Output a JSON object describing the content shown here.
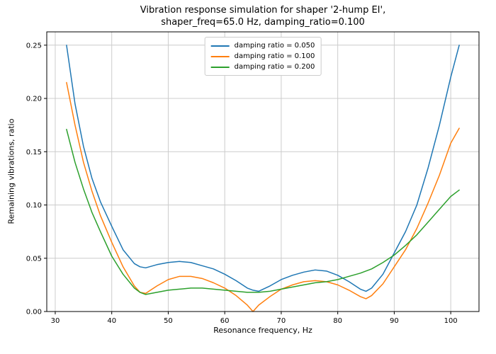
{
  "chart_data": {
    "type": "line",
    "title_line1": "Vibration response simulation for shaper '2-hump EI',",
    "title_line2": "shaper_freq=65.0 Hz, damping_ratio=0.100",
    "xlabel": "Resonance frequency, Hz",
    "ylabel": "Remaining vibrations, ratio",
    "xlim": [
      28.5,
      105
    ],
    "ylim": [
      0,
      0.2625
    ],
    "xticks": [
      30,
      40,
      50,
      60,
      70,
      80,
      90,
      100
    ],
    "yticks": [
      0,
      0.05,
      0.1,
      0.15,
      0.2,
      0.25
    ],
    "grid": true,
    "legend_position": "upper center",
    "x": [
      32,
      33.5,
      35,
      36.5,
      38,
      40,
      42,
      44,
      45,
      46,
      48,
      50,
      52,
      54,
      56,
      58,
      60,
      62,
      64,
      65,
      66,
      68,
      70,
      72,
      74,
      76,
      78,
      80,
      82,
      84,
      85,
      86,
      88,
      90,
      92,
      94,
      96,
      98,
      100,
      101.5
    ],
    "series": [
      {
        "name": "damping ratio = 0.050",
        "color": "#1f77b4",
        "values": [
          0.25,
          0.195,
          0.155,
          0.125,
          0.103,
          0.08,
          0.058,
          0.045,
          0.042,
          0.041,
          0.044,
          0.046,
          0.047,
          0.046,
          0.043,
          0.04,
          0.035,
          0.029,
          0.022,
          0.02,
          0.019,
          0.024,
          0.03,
          0.034,
          0.037,
          0.039,
          0.038,
          0.034,
          0.028,
          0.021,
          0.019,
          0.022,
          0.035,
          0.055,
          0.075,
          0.1,
          0.135,
          0.175,
          0.22,
          0.25
        ]
      },
      {
        "name": "damping ratio = 0.100",
        "color": "#ff7f0e",
        "values": [
          0.215,
          0.175,
          0.14,
          0.113,
          0.09,
          0.065,
          0.042,
          0.024,
          0.018,
          0.017,
          0.024,
          0.03,
          0.033,
          0.033,
          0.031,
          0.027,
          0.022,
          0.015,
          0.006,
          0.0,
          0.006,
          0.014,
          0.021,
          0.025,
          0.028,
          0.029,
          0.028,
          0.025,
          0.02,
          0.014,
          0.012,
          0.015,
          0.026,
          0.042,
          0.058,
          0.078,
          0.102,
          0.128,
          0.158,
          0.172
        ]
      },
      {
        "name": "damping ratio = 0.200",
        "color": "#2ca02c",
        "values": [
          0.171,
          0.14,
          0.115,
          0.093,
          0.075,
          0.052,
          0.035,
          0.022,
          0.018,
          0.016,
          0.018,
          0.02,
          0.021,
          0.022,
          0.022,
          0.021,
          0.02,
          0.019,
          0.018,
          0.018,
          0.018,
          0.019,
          0.021,
          0.023,
          0.025,
          0.027,
          0.028,
          0.03,
          0.033,
          0.036,
          0.038,
          0.04,
          0.046,
          0.053,
          0.062,
          0.072,
          0.084,
          0.096,
          0.108,
          0.114
        ]
      }
    ]
  }
}
